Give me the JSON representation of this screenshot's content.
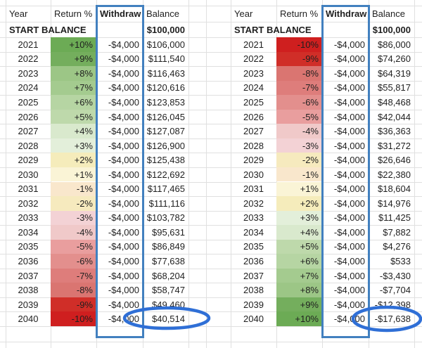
{
  "sheet": {
    "description_labels": {
      "start_balance": "START BALANCE",
      "withdraw_header": "Withdraw"
    }
  },
  "colors": {
    "grid_line": "#e0e0e0",
    "highlight_box_blue": "#4280bf",
    "circle_blue": "#2f6fd6",
    "text": "#1f1f1f",
    "return_scale": {
      "+10%": "#6cab55",
      "+9%": "#74ae5d",
      "+8%": "#9cc686",
      "+7%": "#a4cb8f",
      "+6%": "#b6d5a3",
      "+5%": "#bed9ab",
      "+4%": "#d9e9cd",
      "+3%": "#e3efda",
      "+2%": "#f5ecbb",
      "+1%": "#faf4d6",
      "-1%": "#f9e7cc",
      "-2%": "#f6eabe",
      "-3%": "#f3d2d5",
      "-4%": "#f0c9c9",
      "-5%": "#e99e9e",
      "-6%": "#e38f8d",
      "-7%": "#de7d7b",
      "-8%": "#da7571",
      "-9%": "#d02e28",
      "-10%": "#cf1f1f"
    }
  },
  "tables": [
    {
      "id": "gains-first",
      "headers": [
        "Year",
        "Return %",
        "Withdraw",
        "Balance"
      ],
      "start_label": "START BALANCE",
      "start_value": "$100,000",
      "rows": [
        {
          "year": "2021",
          "return": "+10%",
          "withdraw": "-$4,000",
          "balance": "$106,000"
        },
        {
          "year": "2022",
          "return": "+9%",
          "withdraw": "-$4,000",
          "balance": "$111,540"
        },
        {
          "year": "2023",
          "return": "+8%",
          "withdraw": "-$4,000",
          "balance": "$116,463"
        },
        {
          "year": "2024",
          "return": "+7%",
          "withdraw": "-$4,000",
          "balance": "$120,616"
        },
        {
          "year": "2025",
          "return": "+6%",
          "withdraw": "-$4,000",
          "balance": "$123,853"
        },
        {
          "year": "2026",
          "return": "+5%",
          "withdraw": "-$4,000",
          "balance": "$126,045"
        },
        {
          "year": "2027",
          "return": "+4%",
          "withdraw": "-$4,000",
          "balance": "$127,087"
        },
        {
          "year": "2028",
          "return": "+3%",
          "withdraw": "-$4,000",
          "balance": "$126,900"
        },
        {
          "year": "2029",
          "return": "+2%",
          "withdraw": "-$4,000",
          "balance": "$125,438"
        },
        {
          "year": "2030",
          "return": "+1%",
          "withdraw": "-$4,000",
          "balance": "$122,692"
        },
        {
          "year": "2031",
          "return": "-1%",
          "withdraw": "-$4,000",
          "balance": "$117,465"
        },
        {
          "year": "2032",
          "return": "-2%",
          "withdraw": "-$4,000",
          "balance": "$111,116"
        },
        {
          "year": "2033",
          "return": "-3%",
          "withdraw": "-$4,000",
          "balance": "$103,782"
        },
        {
          "year": "2034",
          "return": "-4%",
          "withdraw": "-$4,000",
          "balance": "$95,631"
        },
        {
          "year": "2035",
          "return": "-5%",
          "withdraw": "-$4,000",
          "balance": "$86,849"
        },
        {
          "year": "2036",
          "return": "-6%",
          "withdraw": "-$4,000",
          "balance": "$77,638"
        },
        {
          "year": "2037",
          "return": "-7%",
          "withdraw": "-$4,000",
          "balance": "$68,204"
        },
        {
          "year": "2038",
          "return": "-8%",
          "withdraw": "-$4,000",
          "balance": "$58,747"
        },
        {
          "year": "2039",
          "return": "-9%",
          "withdraw": "-$4,000",
          "balance": "$49,460"
        },
        {
          "year": "2040",
          "return": "-10%",
          "withdraw": "-$4,000",
          "balance": "$40,514",
          "circled": true
        }
      ]
    },
    {
      "id": "losses-first",
      "headers": [
        "Year",
        "Return %",
        "Withdraw",
        "Balance"
      ],
      "start_label": "START BALANCE",
      "start_value": "$100,000",
      "rows": [
        {
          "year": "2021",
          "return": "-10%",
          "withdraw": "-$4,000",
          "balance": "$86,000"
        },
        {
          "year": "2022",
          "return": "-9%",
          "withdraw": "-$4,000",
          "balance": "$74,260"
        },
        {
          "year": "2023",
          "return": "-8%",
          "withdraw": "-$4,000",
          "balance": "$64,319"
        },
        {
          "year": "2024",
          "return": "-7%",
          "withdraw": "-$4,000",
          "balance": "$55,817"
        },
        {
          "year": "2025",
          "return": "-6%",
          "withdraw": "-$4,000",
          "balance": "$48,468"
        },
        {
          "year": "2026",
          "return": "-5%",
          "withdraw": "-$4,000",
          "balance": "$42,044"
        },
        {
          "year": "2027",
          "return": "-4%",
          "withdraw": "-$4,000",
          "balance": "$36,363"
        },
        {
          "year": "2028",
          "return": "-3%",
          "withdraw": "-$4,000",
          "balance": "$31,272"
        },
        {
          "year": "2029",
          "return": "-2%",
          "withdraw": "-$4,000",
          "balance": "$26,646"
        },
        {
          "year": "2030",
          "return": "-1%",
          "withdraw": "-$4,000",
          "balance": "$22,380"
        },
        {
          "year": "2031",
          "return": "+1%",
          "withdraw": "-$4,000",
          "balance": "$18,604"
        },
        {
          "year": "2032",
          "return": "+2%",
          "withdraw": "-$4,000",
          "balance": "$14,976"
        },
        {
          "year": "2033",
          "return": "+3%",
          "withdraw": "-$4,000",
          "balance": "$11,425"
        },
        {
          "year": "2034",
          "return": "+4%",
          "withdraw": "-$4,000",
          "balance": "$7,882"
        },
        {
          "year": "2035",
          "return": "+5%",
          "withdraw": "-$4,000",
          "balance": "$4,276"
        },
        {
          "year": "2036",
          "return": "+6%",
          "withdraw": "-$4,000",
          "balance": "$533"
        },
        {
          "year": "2037",
          "return": "+7%",
          "withdraw": "-$4,000",
          "balance": "-$3,430"
        },
        {
          "year": "2038",
          "return": "+8%",
          "withdraw": "-$4,000",
          "balance": "-$7,704"
        },
        {
          "year": "2039",
          "return": "+9%",
          "withdraw": "-$4,000",
          "balance": "-$12,398"
        },
        {
          "year": "2040",
          "return": "+10%",
          "withdraw": "-$4,000",
          "balance": "-$17,638",
          "circled": true
        }
      ]
    }
  ]
}
